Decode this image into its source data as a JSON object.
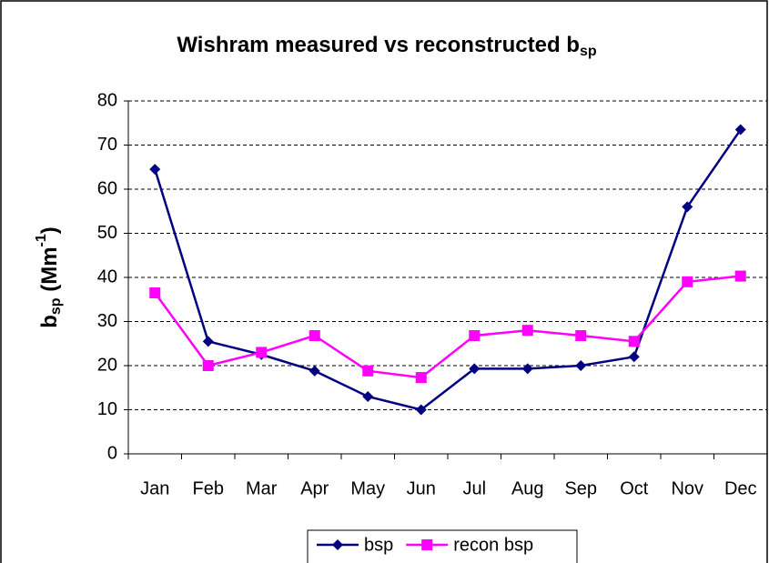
{
  "chart_data": {
    "type": "line",
    "title": {
      "text": "Wishram measured vs reconstructed b",
      "sub": "sp"
    },
    "y_label": [
      "b",
      "sp",
      " (Mm",
      "-1",
      ")"
    ],
    "categories": [
      "Jan",
      "Feb",
      "Mar",
      "Apr",
      "May",
      "Jun",
      "Jul",
      "Aug",
      "Sep",
      "Oct",
      "Nov",
      "Dec"
    ],
    "series": [
      {
        "name": "bsp",
        "color": "#000080",
        "marker": "diamond",
        "values": [
          64.5,
          25.5,
          22.5,
          18.8,
          13,
          10,
          19.3,
          19.3,
          20,
          22,
          56,
          73.5
        ]
      },
      {
        "name": "recon bsp",
        "color": "#ff00ff",
        "marker": "square",
        "values": [
          36.5,
          20,
          23,
          26.8,
          18.8,
          17.3,
          26.8,
          28,
          26.8,
          25.5,
          39,
          40.3
        ]
      }
    ],
    "ylim": [
      0,
      80
    ],
    "yticks": [
      0,
      10,
      20,
      30,
      40,
      50,
      60,
      70,
      80
    ],
    "grid": true,
    "legend": "bottom"
  }
}
